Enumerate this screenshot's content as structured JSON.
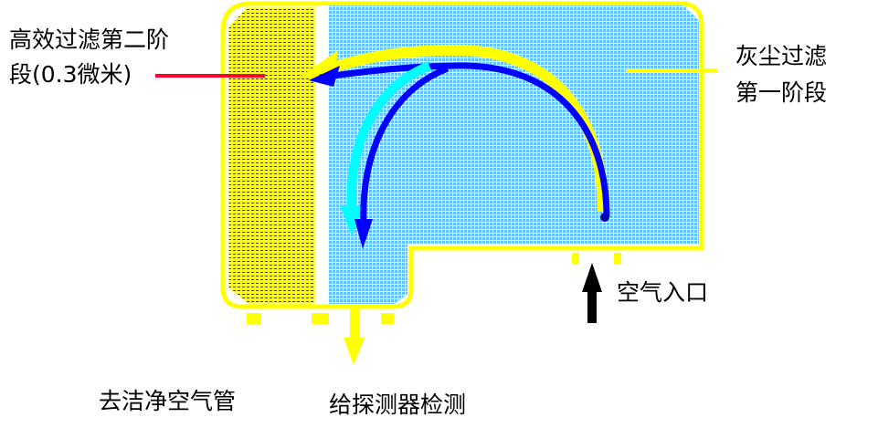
{
  "labels": {
    "hepa_stage_line1": "高效过滤第二阶",
    "hepa_stage_line2": "段(0.3微米)",
    "dust_stage_line1": "灰尘过滤",
    "dust_stage_line2": "第一阶段",
    "air_inlet": "空气入口",
    "to_clean_air_pipe": "去洁净空气管",
    "to_detector": "给探测器检测"
  },
  "colors": {
    "housing": "#ffff00",
    "hepa_filter": "#e6e600",
    "dust_filter": "#66c2ff",
    "flow_yellow": "#ffff00",
    "flow_blue": "#0000ff",
    "flow_cyan": "#00ffff",
    "pointer_red": "#ff0033",
    "inlet_arrow": "#000000"
  }
}
